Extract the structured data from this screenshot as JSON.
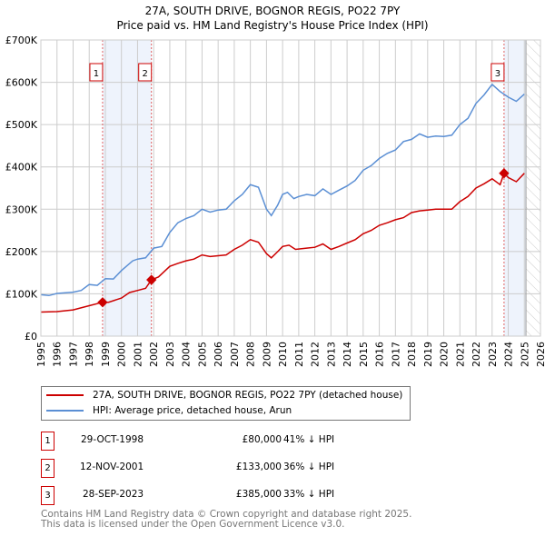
{
  "title": {
    "line1": "27A, SOUTH DRIVE, BOGNOR REGIS, PO22 7PY",
    "line2": "Price paid vs. HM Land Registry's House Price Index (HPI)"
  },
  "chart_data": {
    "type": "line",
    "xlim": [
      1995,
      2026
    ],
    "ylim": [
      0,
      700000
    ],
    "x_ticks": [
      "1995",
      "1996",
      "1997",
      "1998",
      "1999",
      "2000",
      "2001",
      "2002",
      "2003",
      "2004",
      "2005",
      "2006",
      "2007",
      "2008",
      "2009",
      "2010",
      "2011",
      "2012",
      "2013",
      "2014",
      "2015",
      "2016",
      "2017",
      "2018",
      "2019",
      "2020",
      "2021",
      "2022",
      "2023",
      "2024",
      "2025",
      "2026"
    ],
    "y_ticks": [
      {
        "v": 0,
        "label": "£0"
      },
      {
        "v": 100000,
        "label": "£100K"
      },
      {
        "v": 200000,
        "label": "£200K"
      },
      {
        "v": 300000,
        "label": "£300K"
      },
      {
        "v": 400000,
        "label": "£400K"
      },
      {
        "v": 500000,
        "label": "£500K"
      },
      {
        "v": 600000,
        "label": "£600K"
      },
      {
        "v": 700000,
        "label": "£700K"
      }
    ],
    "grid": true,
    "colors": {
      "property": "#cc0000",
      "hpi": "#5b8fd4",
      "shade": "#eef3fc",
      "vline": "#e06060"
    },
    "series": [
      {
        "name": "27A, SOUTH DRIVE, BOGNOR REGIS, PO22 7PY (detached house)",
        "key": "property",
        "points": [
          [
            1995,
            57000
          ],
          [
            1996,
            58000
          ],
          [
            1997,
            62000
          ],
          [
            1998,
            72000
          ],
          [
            1998.83,
            80000
          ],
          [
            1999.2,
            80000
          ],
          [
            2000,
            90000
          ],
          [
            2000.5,
            103000
          ],
          [
            2001,
            108000
          ],
          [
            2001.5,
            113000
          ],
          [
            2001.86,
            133000
          ],
          [
            2002.3,
            140000
          ],
          [
            2003,
            165000
          ],
          [
            2003.5,
            172000
          ],
          [
            2004,
            178000
          ],
          [
            2004.5,
            182000
          ],
          [
            2005,
            192000
          ],
          [
            2005.5,
            188000
          ],
          [
            2006,
            190000
          ],
          [
            2006.5,
            192000
          ],
          [
            2007,
            205000
          ],
          [
            2007.5,
            215000
          ],
          [
            2008,
            228000
          ],
          [
            2008.5,
            222000
          ],
          [
            2009,
            195000
          ],
          [
            2009.3,
            185000
          ],
          [
            2009.7,
            200000
          ],
          [
            2010,
            212000
          ],
          [
            2010.4,
            215000
          ],
          [
            2010.8,
            205000
          ],
          [
            2011.5,
            208000
          ],
          [
            2012,
            210000
          ],
          [
            2012.5,
            218000
          ],
          [
            2013,
            205000
          ],
          [
            2013.5,
            212000
          ],
          [
            2014,
            220000
          ],
          [
            2014.5,
            228000
          ],
          [
            2015,
            242000
          ],
          [
            2015.5,
            250000
          ],
          [
            2016,
            262000
          ],
          [
            2016.5,
            268000
          ],
          [
            2017,
            275000
          ],
          [
            2017.5,
            280000
          ],
          [
            2018,
            292000
          ],
          [
            2018.5,
            296000
          ],
          [
            2019,
            298000
          ],
          [
            2019.5,
            300000
          ],
          [
            2020,
            300000
          ],
          [
            2020.5,
            300000
          ],
          [
            2021,
            318000
          ],
          [
            2021.5,
            330000
          ],
          [
            2022,
            350000
          ],
          [
            2022.5,
            360000
          ],
          [
            2023,
            372000
          ],
          [
            2023.5,
            358000
          ],
          [
            2023.74,
            385000
          ],
          [
            2024,
            375000
          ],
          [
            2024.5,
            365000
          ],
          [
            2025,
            385000
          ]
        ]
      },
      {
        "name": "HPI: Average price, detached house, Arun",
        "key": "hpi",
        "points": [
          [
            1995,
            98000
          ],
          [
            1995.5,
            96000
          ],
          [
            1996,
            101000
          ],
          [
            1997,
            104000
          ],
          [
            1997.5,
            108000
          ],
          [
            1998,
            122000
          ],
          [
            1998.5,
            120000
          ],
          [
            1999,
            136000
          ],
          [
            1999.5,
            135000
          ],
          [
            2000,
            155000
          ],
          [
            2000.7,
            178000
          ],
          [
            2001,
            182000
          ],
          [
            2001.5,
            185000
          ],
          [
            2002,
            208000
          ],
          [
            2002.5,
            212000
          ],
          [
            2003,
            245000
          ],
          [
            2003.5,
            268000
          ],
          [
            2004,
            278000
          ],
          [
            2004.5,
            285000
          ],
          [
            2005,
            300000
          ],
          [
            2005.5,
            293000
          ],
          [
            2006,
            298000
          ],
          [
            2006.5,
            300000
          ],
          [
            2007,
            320000
          ],
          [
            2007.5,
            335000
          ],
          [
            2008,
            358000
          ],
          [
            2008.5,
            352000
          ],
          [
            2009,
            300000
          ],
          [
            2009.3,
            285000
          ],
          [
            2009.7,
            310000
          ],
          [
            2010,
            335000
          ],
          [
            2010.3,
            340000
          ],
          [
            2010.7,
            325000
          ],
          [
            2011,
            330000
          ],
          [
            2011.5,
            335000
          ],
          [
            2012,
            332000
          ],
          [
            2012.5,
            348000
          ],
          [
            2013,
            335000
          ],
          [
            2013.5,
            345000
          ],
          [
            2014,
            355000
          ],
          [
            2014.5,
            368000
          ],
          [
            2015,
            392000
          ],
          [
            2015.5,
            403000
          ],
          [
            2016,
            420000
          ],
          [
            2016.5,
            432000
          ],
          [
            2017,
            440000
          ],
          [
            2017.5,
            460000
          ],
          [
            2018,
            465000
          ],
          [
            2018.5,
            478000
          ],
          [
            2019,
            470000
          ],
          [
            2019.5,
            473000
          ],
          [
            2020,
            472000
          ],
          [
            2020.5,
            475000
          ],
          [
            2021,
            500000
          ],
          [
            2021.5,
            515000
          ],
          [
            2022,
            550000
          ],
          [
            2022.5,
            570000
          ],
          [
            2023,
            595000
          ],
          [
            2023.5,
            578000
          ],
          [
            2024,
            565000
          ],
          [
            2024.5,
            555000
          ],
          [
            2025,
            572000
          ]
        ]
      }
    ],
    "sales": [
      {
        "id": "1",
        "x": 1998.83,
        "price": 80000,
        "date": "29-OCT-1998",
        "price_label": "£80,000",
        "hpi_diff": "41% ↓ HPI"
      },
      {
        "id": "2",
        "x": 2001.86,
        "price": 133000,
        "date": "12-NOV-2001",
        "price_label": "£133,000",
        "hpi_diff": "36% ↓ HPI"
      },
      {
        "id": "3",
        "x": 2023.74,
        "price": 385000,
        "date": "28-SEP-2023",
        "price_label": "£385,000",
        "hpi_diff": "33% ↓ HPI"
      }
    ],
    "data_end": 2025.1
  },
  "footer": {
    "line1": "Contains HM Land Registry data © Crown copyright and database right 2025.",
    "line2": "This data is licensed under the Open Government Licence v3.0."
  }
}
